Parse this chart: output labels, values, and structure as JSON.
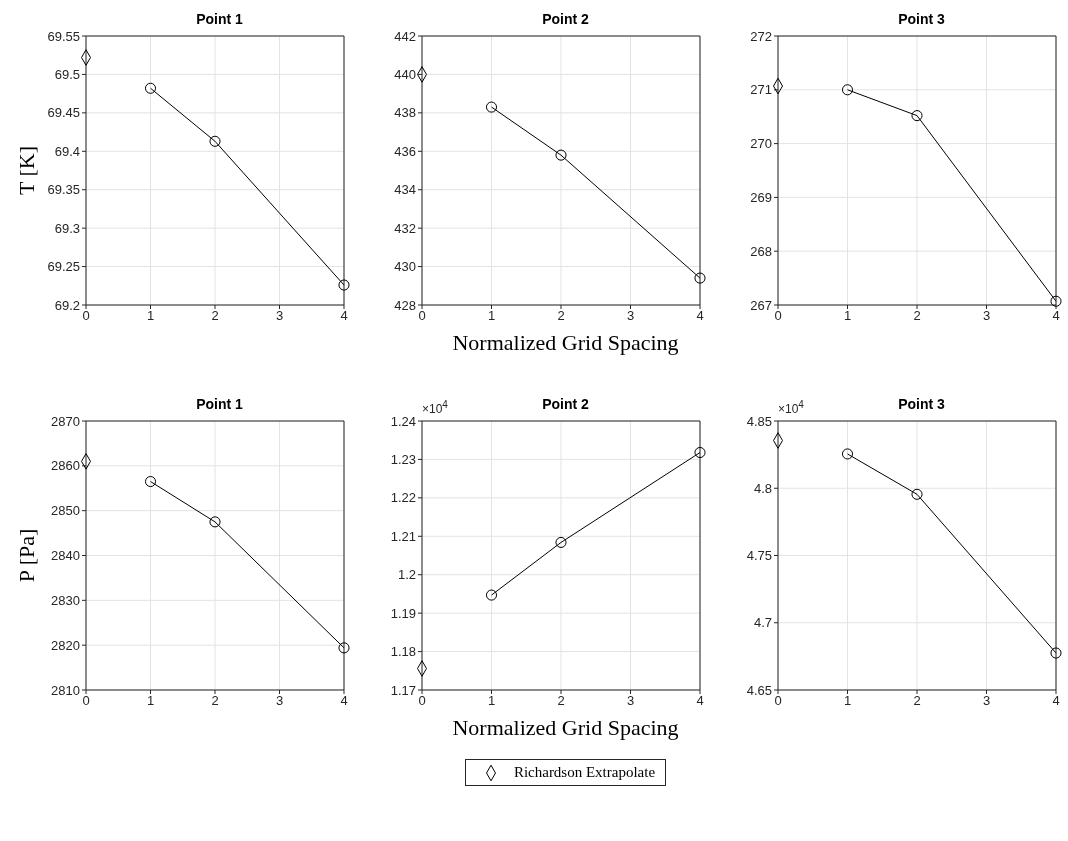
{
  "chart_data": [
    {
      "type": "line",
      "title": "Point 1",
      "ylabel": "T [K]",
      "xlim": [
        0,
        4
      ],
      "xticks": [
        0,
        1,
        2,
        3,
        4
      ],
      "ylim": [
        69.2,
        69.55
      ],
      "yticks": [
        69.2,
        69.25,
        69.3,
        69.35,
        69.4,
        69.45,
        69.5,
        69.55
      ],
      "grid": true,
      "series": [
        {
          "type": "line",
          "color": "#000000",
          "marker": "circle",
          "x": [
            1,
            2,
            4
          ],
          "values": [
            69.482,
            69.413,
            69.226
          ]
        },
        {
          "type": "scatter",
          "color": "#000000",
          "marker": "diamond",
          "x": [
            0
          ],
          "values": [
            69.522
          ]
        }
      ]
    },
    {
      "type": "line",
      "title": "Point 2",
      "xlabel": "Normalized Grid Spacing",
      "xlim": [
        0,
        4
      ],
      "xticks": [
        0,
        1,
        2,
        3,
        4
      ],
      "ylim": [
        428,
        442
      ],
      "yticks": [
        428,
        430,
        432,
        434,
        436,
        438,
        440,
        442
      ],
      "grid": true,
      "series": [
        {
          "type": "line",
          "color": "#000000",
          "marker": "circle",
          "x": [
            1,
            2,
            4
          ],
          "values": [
            438.3,
            435.8,
            429.4
          ]
        },
        {
          "type": "scatter",
          "color": "#000000",
          "marker": "diamond",
          "x": [
            0
          ],
          "values": [
            440.0
          ]
        }
      ]
    },
    {
      "type": "line",
      "title": "Point 3",
      "xlim": [
        0,
        4
      ],
      "xticks": [
        0,
        1,
        2,
        3,
        4
      ],
      "ylim": [
        267,
        272
      ],
      "yticks": [
        267,
        268,
        269,
        270,
        271,
        272
      ],
      "grid": true,
      "series": [
        {
          "type": "line",
          "color": "#000000",
          "marker": "circle",
          "x": [
            1,
            2,
            4
          ],
          "values": [
            271.0,
            270.52,
            267.07
          ]
        },
        {
          "type": "scatter",
          "color": "#000000",
          "marker": "diamond",
          "x": [
            0
          ],
          "values": [
            271.07
          ]
        }
      ]
    },
    {
      "type": "line",
      "title": "Point 1",
      "ylabel": "P [Pa]",
      "xlim": [
        0,
        4
      ],
      "xticks": [
        0,
        1,
        2,
        3,
        4
      ],
      "ylim": [
        2810,
        2870
      ],
      "yticks": [
        2810,
        2820,
        2830,
        2840,
        2850,
        2860,
        2870
      ],
      "grid": true,
      "series": [
        {
          "type": "line",
          "color": "#000000",
          "marker": "circle",
          "x": [
            1,
            2,
            4
          ],
          "values": [
            2856.5,
            2847.5,
            2819.4
          ]
        },
        {
          "type": "scatter",
          "color": "#000000",
          "marker": "diamond",
          "x": [
            0
          ],
          "values": [
            2861
          ]
        }
      ]
    },
    {
      "type": "line",
      "title": "Point 2",
      "xlabel": "Normalized Grid Spacing",
      "annotations": [
        "×10$^{4}$"
      ],
      "legend": "bottom",
      "xlim": [
        0,
        4
      ],
      "xticks": [
        0,
        1,
        2,
        3,
        4
      ],
      "ylim": [
        1.17,
        1.24
      ],
      "yticks": [
        1.17,
        1.18,
        1.19,
        1.2,
        1.21,
        1.22,
        1.23,
        1.24
      ],
      "grid": true,
      "series": [
        {
          "type": "line",
          "color": "#000000",
          "marker": "circle",
          "x": [
            1,
            2,
            4
          ],
          "values": [
            1.1947,
            1.2084,
            1.2318
          ]
        },
        {
          "type": "scatter",
          "name": "Richardson Extrapolate",
          "color": "#000000",
          "marker": "diamond",
          "x": [
            0
          ],
          "values": [
            1.1756
          ]
        }
      ]
    },
    {
      "type": "line",
      "title": "Point 3",
      "annotations": [
        "×10$^{4}$"
      ],
      "xlim": [
        0,
        4
      ],
      "xticks": [
        0,
        1,
        2,
        3,
        4
      ],
      "ylim": [
        4.65,
        4.85
      ],
      "yticks": [
        4.65,
        4.7,
        4.75,
        4.8,
        4.85
      ],
      "grid": true,
      "series": [
        {
          "type": "line",
          "color": "#000000",
          "marker": "circle",
          "x": [
            1,
            2,
            4
          ],
          "values": [
            4.8255,
            4.7955,
            4.6775
          ]
        },
        {
          "type": "scatter",
          "color": "#000000",
          "marker": "diamond",
          "x": [
            0
          ],
          "values": [
            4.8355
          ]
        }
      ]
    }
  ]
}
